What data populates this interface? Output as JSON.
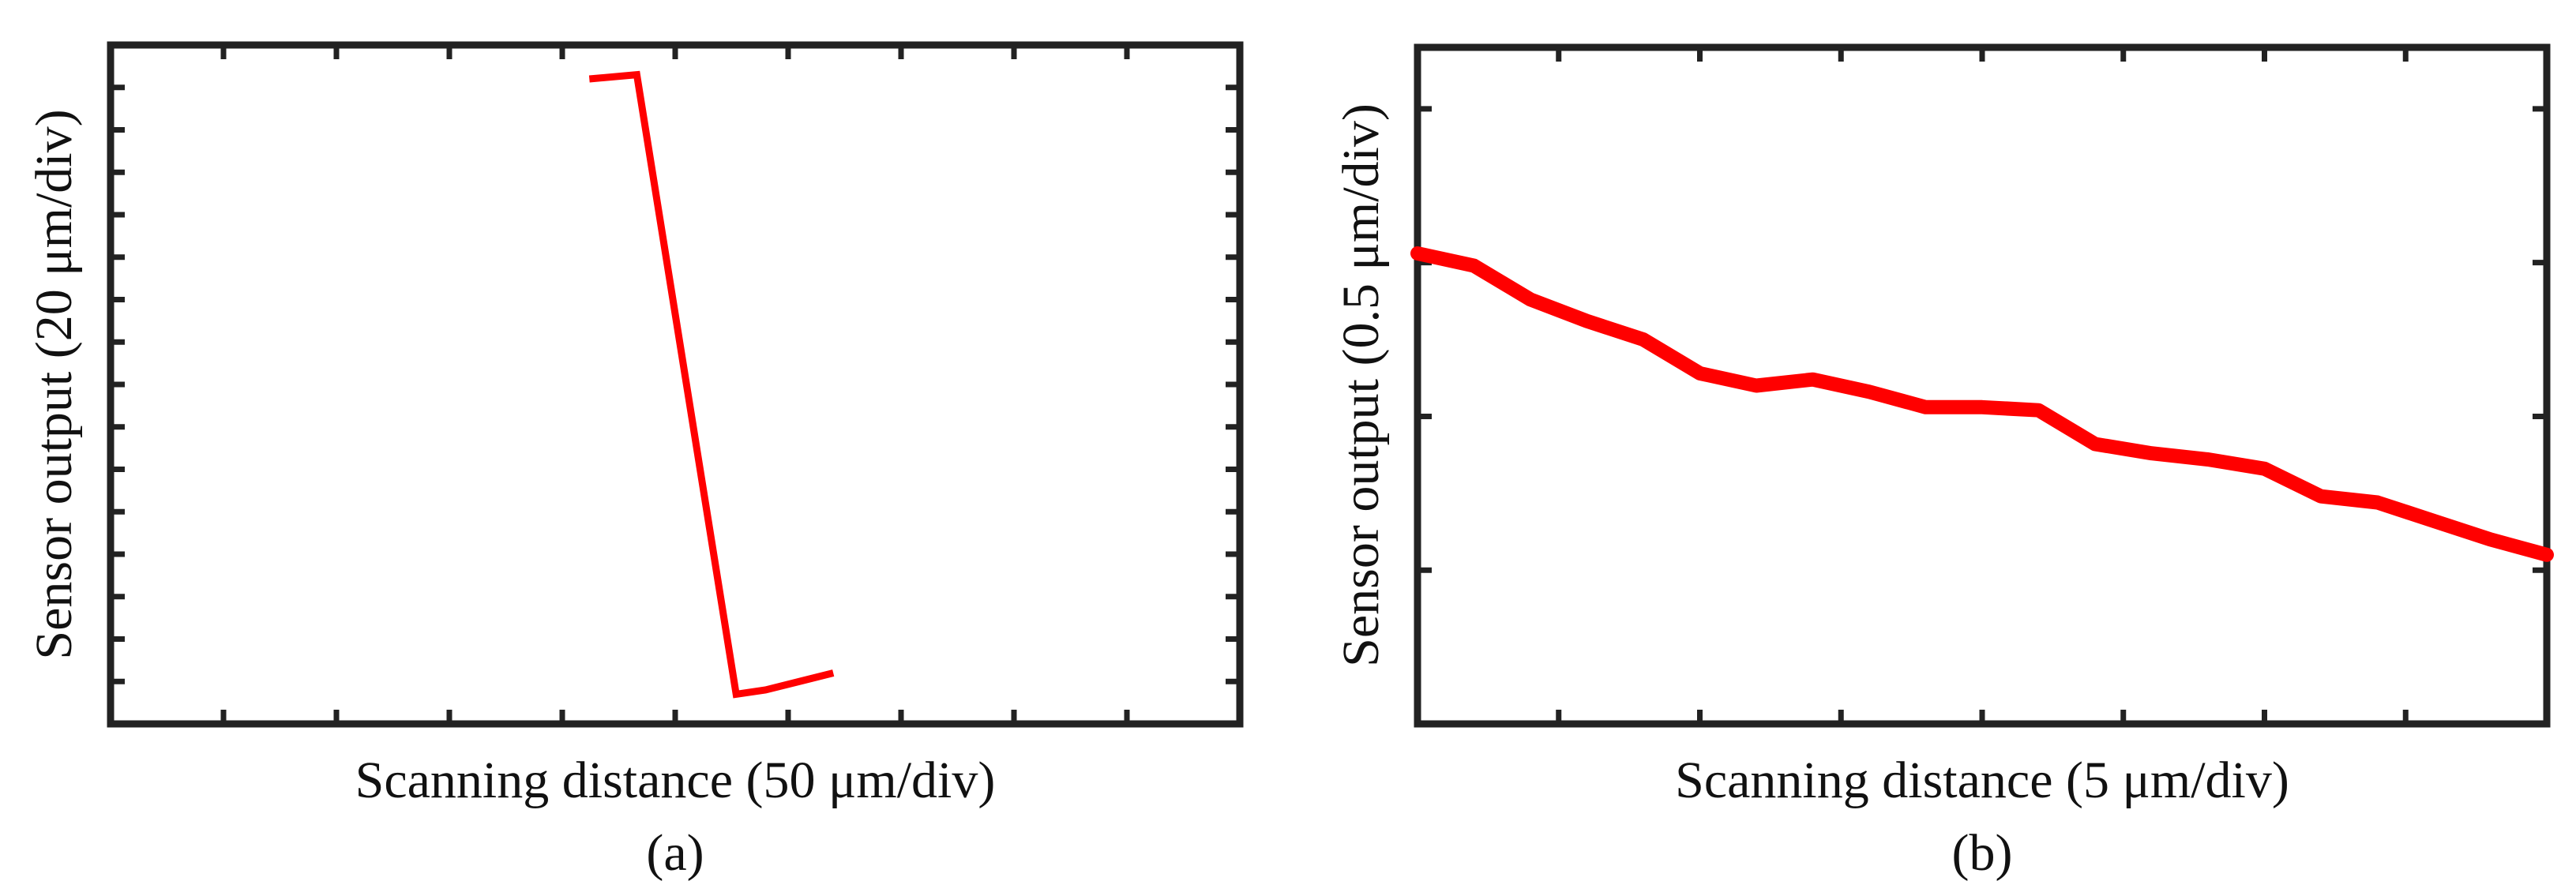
{
  "colors": {
    "series": "#ff0000",
    "frame": "#222222",
    "background": "#ffffff"
  },
  "chart_data": [
    {
      "type": "line",
      "panel_label": "(a)",
      "xlabel": "Scanning distance (50 μm/div)",
      "ylabel": "Sensor output (20 μm/div)",
      "x_units_per_div": 50,
      "y_units_per_div": 20,
      "xlim": [
        0,
        500
      ],
      "ylim": [
        0,
        160
      ],
      "x_ticks": [
        50,
        100,
        150,
        200,
        250,
        300,
        350,
        400,
        450
      ],
      "y_ticks": [
        10,
        20,
        30,
        40,
        50,
        60,
        70,
        80,
        90,
        100,
        110,
        120,
        130,
        140,
        150
      ],
      "grid": false,
      "series": [
        {
          "x": [
            212,
            233,
            277,
            290,
            320
          ],
          "y": [
            152,
            153,
            7,
            8,
            12
          ]
        }
      ]
    },
    {
      "type": "line",
      "panel_label": "(b)",
      "xlabel": "Scanning distance (5 μm/div)",
      "ylabel": "Sensor output (0.5 μm/div)",
      "x_units_per_div": 5,
      "y_units_per_div": 0.5,
      "xlim": [
        0,
        40
      ],
      "ylim": [
        0,
        2.2
      ],
      "x_ticks": [
        0,
        5,
        10,
        15,
        20,
        25,
        30,
        35,
        40
      ],
      "y_ticks": [
        0,
        0.5,
        1,
        1.5,
        2,
        2.2
      ],
      "grid": false,
      "series": [
        {
          "x": [
            0,
            2,
            4,
            6,
            8,
            10,
            12,
            14,
            16,
            18,
            20,
            22,
            24,
            26,
            28,
            30,
            32,
            34,
            36,
            38,
            40
          ],
          "y": [
            1.53,
            1.49,
            1.38,
            1.31,
            1.25,
            1.14,
            1.1,
            1.12,
            1.08,
            1.03,
            1.03,
            1.02,
            0.91,
            0.88,
            0.86,
            0.83,
            0.74,
            0.72,
            0.66,
            0.6,
            0.55
          ]
        }
      ]
    }
  ]
}
